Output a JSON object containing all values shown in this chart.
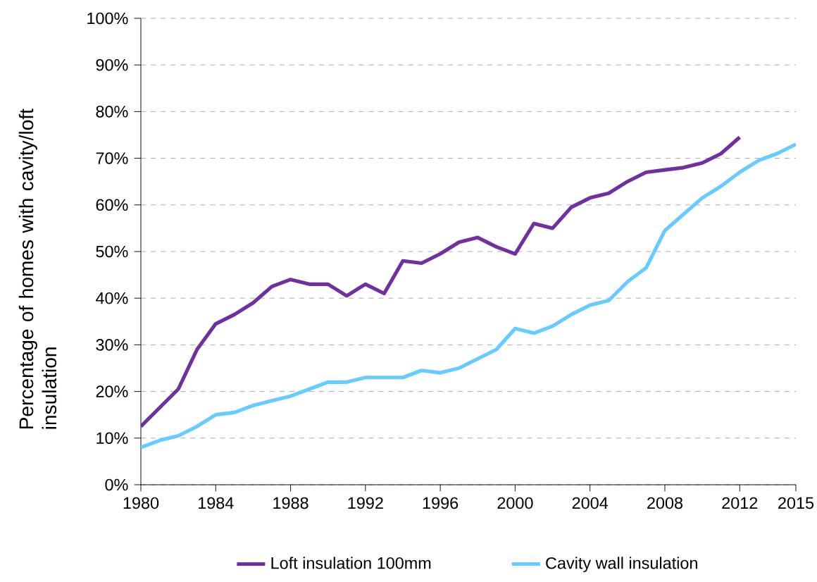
{
  "chart_data": {
    "type": "line",
    "ylabel": "Percentage of homes with cavity/loft insulation",
    "xlim": [
      1980,
      2015
    ],
    "xticks": [
      1980,
      1984,
      1988,
      1992,
      1996,
      2000,
      2004,
      2008,
      2012,
      2015
    ],
    "ylim": [
      0,
      100
    ],
    "yticks": [
      {
        "value": 0,
        "label": "0%"
      },
      {
        "value": 10,
        "label": "10%"
      },
      {
        "value": 20,
        "label": "20%"
      },
      {
        "value": 30,
        "label": "30%"
      },
      {
        "value": 40,
        "label": "40%"
      },
      {
        "value": 50,
        "label": "50%"
      },
      {
        "value": 60,
        "label": "60%"
      },
      {
        "value": 70,
        "label": "70%"
      },
      {
        "value": 80,
        "label": "80%"
      },
      {
        "value": 90,
        "label": "90%"
      },
      {
        "value": 100,
        "label": "100%"
      }
    ],
    "grid": "y",
    "legend": "bottom",
    "marker": "none",
    "line_style": "solid",
    "series": [
      {
        "name": "Loft insulation 100mm",
        "color": "#7030a0",
        "x": [
          1980,
          1981,
          1982,
          1983,
          1984,
          1985,
          1986,
          1987,
          1988,
          1989,
          1990,
          1991,
          1992,
          1993,
          1994,
          1995,
          1996,
          1997,
          1998,
          1999,
          2000,
          2001,
          2002,
          2003,
          2004,
          2005,
          2006,
          2007,
          2008,
          2009,
          2010,
          2011,
          2012
        ],
        "values": [
          12.5,
          16.5,
          20.5,
          29,
          34.5,
          36.5,
          39,
          42.5,
          44,
          43,
          43,
          40.5,
          43,
          41,
          48,
          47.5,
          49.5,
          52,
          53,
          51,
          49.5,
          56,
          55,
          59.5,
          61.5,
          62.5,
          65,
          67,
          67.5,
          68,
          69,
          71,
          74.5
        ]
      },
      {
        "name": "Cavity wall insulation",
        "color": "#66ccff",
        "x": [
          1980,
          1981,
          1982,
          1983,
          1984,
          1985,
          1986,
          1987,
          1988,
          1989,
          1990,
          1991,
          1992,
          1993,
          1994,
          1995,
          1996,
          1997,
          1998,
          1999,
          2000,
          2001,
          2002,
          2003,
          2004,
          2005,
          2006,
          2007,
          2008,
          2009,
          2010,
          2011,
          2012,
          2013,
          2014,
          2015
        ],
        "values": [
          8,
          9.5,
          10.5,
          12.5,
          15,
          15.5,
          17,
          18,
          19,
          20.5,
          22,
          22,
          23,
          23,
          23,
          24.5,
          24,
          25,
          27,
          29,
          33.5,
          32.5,
          34,
          36.5,
          38.5,
          39.5,
          43.5,
          46.5,
          54.5,
          58,
          61.5,
          64,
          67,
          69.5,
          71,
          73
        ]
      }
    ]
  }
}
